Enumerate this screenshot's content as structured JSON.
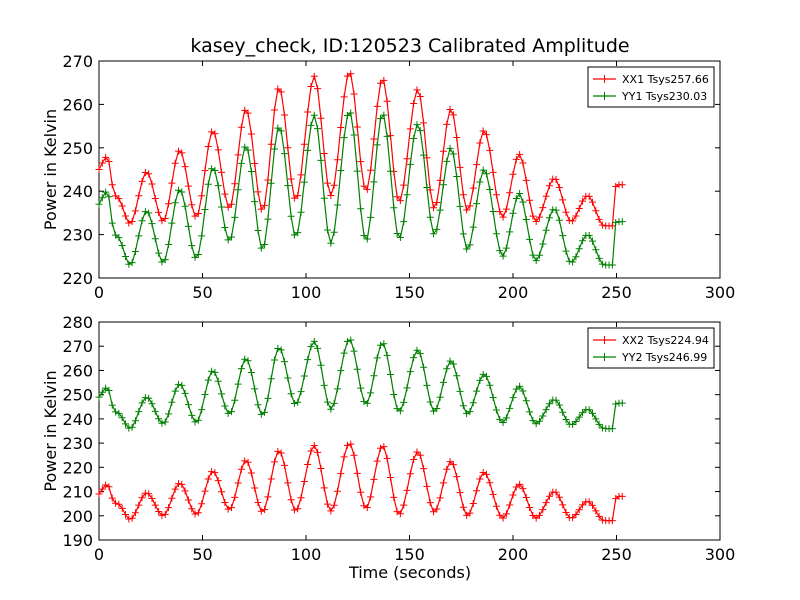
{
  "chart_data": [
    {
      "type": "line",
      "title": "kasey_check, ID:120523 Calibrated Amplitude",
      "xlabel": "",
      "ylabel": "Power in Kelvin",
      "xlim": [
        0,
        300
      ],
      "ylim": [
        220,
        270
      ],
      "xticks": [
        "0",
        "50",
        "100",
        "150",
        "200",
        "250",
        "300"
      ],
      "yticks": [
        "220",
        "230",
        "240",
        "250",
        "260",
        "270"
      ],
      "grid": false,
      "legend_position": "top-right",
      "marker": "+",
      "series": [
        {
          "name": "XX1 Tsys257.66",
          "color": "#ff0000",
          "x": [
            0,
            4,
            7,
            10,
            15,
            23,
            31,
            39,
            47,
            55,
            63,
            71,
            79,
            87,
            95,
            104,
            112,
            121,
            129,
            137,
            145,
            154,
            162,
            170,
            178,
            186,
            195,
            203,
            211,
            220,
            228,
            236,
            244,
            248,
            249,
            250,
            253
          ],
          "y": [
            245,
            248,
            240,
            238,
            232.5,
            244.5,
            233,
            249.5,
            234,
            254,
            236,
            259,
            235.5,
            264,
            238,
            266.5,
            239,
            267.5,
            240,
            266,
            237.5,
            263.5,
            236,
            259,
            235.5,
            254,
            234,
            248.5,
            233,
            243,
            233,
            239,
            232,
            232,
            239,
            241.5,
            241.5
          ]
        },
        {
          "name": "YY1 Tsys230.03",
          "color": "#008000",
          "x": [
            0,
            4,
            7,
            10,
            15,
            23,
            31,
            39,
            47,
            55,
            63,
            71,
            79,
            87,
            95,
            104,
            112,
            121,
            129,
            137,
            145,
            154,
            162,
            170,
            178,
            186,
            195,
            203,
            211,
            220,
            228,
            236,
            244,
            248,
            249,
            250,
            253
          ],
          "y": [
            237,
            240,
            231,
            229,
            223,
            235.5,
            223.5,
            240.5,
            224.5,
            245.5,
            228.5,
            250.5,
            226.5,
            255,
            229.5,
            257.5,
            228,
            258.5,
            228.5,
            258,
            229,
            255.5,
            230,
            250,
            226.5,
            245,
            225,
            239.5,
            224,
            236,
            223.5,
            230,
            223,
            223,
            231,
            233,
            233
          ]
        }
      ]
    },
    {
      "type": "line",
      "title": "",
      "xlabel": "Time (seconds)",
      "ylabel": "Power in Kelvin",
      "xlim": [
        0,
        300
      ],
      "ylim": [
        190,
        280
      ],
      "xticks": [
        "0",
        "50",
        "100",
        "150",
        "200",
        "250",
        "300"
      ],
      "yticks": [
        "190",
        "200",
        "210",
        "220",
        "230",
        "240",
        "250",
        "260",
        "270",
        "280"
      ],
      "grid": false,
      "legend_position": "top-right",
      "marker": "+",
      "series": [
        {
          "name": "XX2 Tsys224.94",
          "color": "#ff0000",
          "x": [
            0,
            4,
            7,
            10,
            15,
            23,
            31,
            39,
            47,
            55,
            63,
            71,
            79,
            87,
            95,
            104,
            112,
            121,
            129,
            137,
            145,
            154,
            162,
            170,
            178,
            186,
            195,
            203,
            211,
            220,
            228,
            236,
            244,
            248,
            249,
            250,
            253
          ],
          "y": [
            209,
            213,
            206,
            204.5,
            198.5,
            209.5,
            200,
            213.5,
            200.5,
            218.5,
            202.5,
            223,
            201.5,
            227,
            202,
            229,
            202,
            230,
            203,
            229,
            200.5,
            226.5,
            201.5,
            222.5,
            200,
            218,
            199,
            213,
            199,
            210,
            199,
            206,
            198,
            198,
            204,
            208,
            208
          ]
        },
        {
          "name": "YY2 Tsys246.99",
          "color": "#008000",
          "x": [
            0,
            4,
            7,
            10,
            15,
            23,
            31,
            39,
            47,
            55,
            63,
            71,
            79,
            87,
            95,
            104,
            112,
            121,
            129,
            137,
            145,
            154,
            162,
            170,
            178,
            186,
            195,
            203,
            211,
            220,
            228,
            236,
            244,
            248,
            249,
            250,
            253
          ],
          "y": [
            249,
            253,
            244,
            242,
            236,
            249,
            238,
            254.5,
            238.5,
            260,
            242,
            265,
            241.5,
            269.5,
            246,
            272,
            244,
            273,
            246,
            271.5,
            243,
            268.5,
            243,
            264,
            242,
            258.5,
            238.5,
            253.5,
            238,
            248,
            237.5,
            244,
            236,
            236,
            244,
            246.5,
            246.5
          ]
        }
      ]
    }
  ]
}
